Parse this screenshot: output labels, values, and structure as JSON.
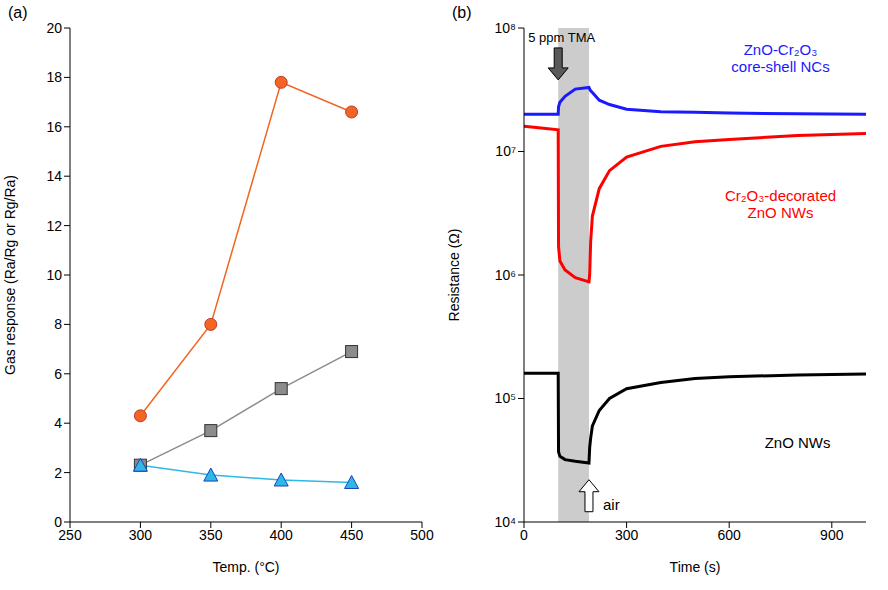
{
  "chart_data": [
    {
      "type": "line",
      "panel_label": "(a)",
      "x_label": "Temp. (°C)",
      "y_label": "Gas response (Ra/Rg or Rg/Ra)",
      "x": [
        300,
        350,
        400,
        450
      ],
      "xlim": [
        250,
        500
      ],
      "xticks": [
        250,
        300,
        350,
        400,
        450,
        500
      ],
      "ylim": [
        0,
        20
      ],
      "yticks": [
        0,
        2,
        4,
        6,
        8,
        10,
        12,
        14,
        16,
        18,
        20
      ],
      "grid": false,
      "series": [
        {
          "color": "#f26522",
          "marker": "circle",
          "line_style": "solid",
          "values": [
            4.3,
            8.0,
            17.8,
            16.6
          ]
        },
        {
          "color": "#8c8c8c",
          "marker": "square",
          "line_style": "solid",
          "values": [
            2.3,
            3.7,
            5.4,
            6.9
          ]
        },
        {
          "color": "#2eb8e6",
          "marker": "triangle",
          "line_style": "solid",
          "values": [
            2.3,
            1.9,
            1.7,
            1.6
          ]
        }
      ]
    },
    {
      "type": "line",
      "panel_label": "(b)",
      "x_label": "Time (s)",
      "y_label": "Resistance (Ω)",
      "log": "y",
      "x": [
        0,
        50,
        100,
        101,
        105,
        120,
        150,
        190,
        192,
        195,
        200,
        220,
        250,
        300,
        400,
        500,
        600,
        800,
        1000
      ],
      "xlim": [
        0,
        1000
      ],
      "xticks": [
        0,
        300,
        600,
        900
      ],
      "ylim": [
        10000,
        100000000
      ],
      "yticks": [
        {
          "value": 10000,
          "label": "10⁴"
        },
        {
          "value": 100000,
          "label": "10⁵"
        },
        {
          "value": 1000000,
          "label": "10⁶"
        },
        {
          "value": 10000000,
          "label": "10⁷"
        },
        {
          "value": 100000000,
          "label": "10⁸"
        }
      ],
      "grid": false,
      "exposure": [
        100,
        190
      ],
      "annotations": [
        {
          "text": "5 ppm TMA",
          "x": 100,
          "y": 38000000
        },
        {
          "text": "air",
          "x": 190,
          "y": 22000
        }
      ],
      "series": [
        {
          "name": "ZnO-Cr₂O₃ core-shell NCs",
          "color": "#1a1aff",
          "line_style": "solid",
          "label_x": 750,
          "label_y": 60000000,
          "values": [
            20000000,
            20000000,
            20000000,
            23000000,
            25000000,
            28000000,
            32000000,
            33000000,
            32000000,
            31000000,
            30000000,
            26000000,
            24000000,
            22000000,
            21000000,
            20800000,
            20500000,
            20200000,
            20000000
          ]
        },
        {
          "name": "Cr₂O₃-decorated ZnO NWs",
          "color": "#ff0000",
          "line_style": "solid",
          "label_x": 750,
          "label_y": 4000000,
          "values": [
            16000000,
            15500000,
            15000000,
            1700000,
            1300000,
            1100000,
            950000,
            880000,
            1000000,
            1900000,
            3000000,
            5000000,
            7000000,
            9000000,
            11000000,
            12000000,
            12500000,
            13500000,
            14000000
          ]
        },
        {
          "name": "ZnO NWs",
          "color": "#000000",
          "line_style": "solid",
          "label_x": 800,
          "label_y": 40000,
          "values": [
            160000,
            160000,
            160000,
            37000,
            34000,
            32000,
            31000,
            30000,
            40000,
            48000,
            60000,
            80000,
            100000,
            120000,
            135000,
            145000,
            150000,
            155000,
            158000
          ]
        }
      ]
    }
  ]
}
